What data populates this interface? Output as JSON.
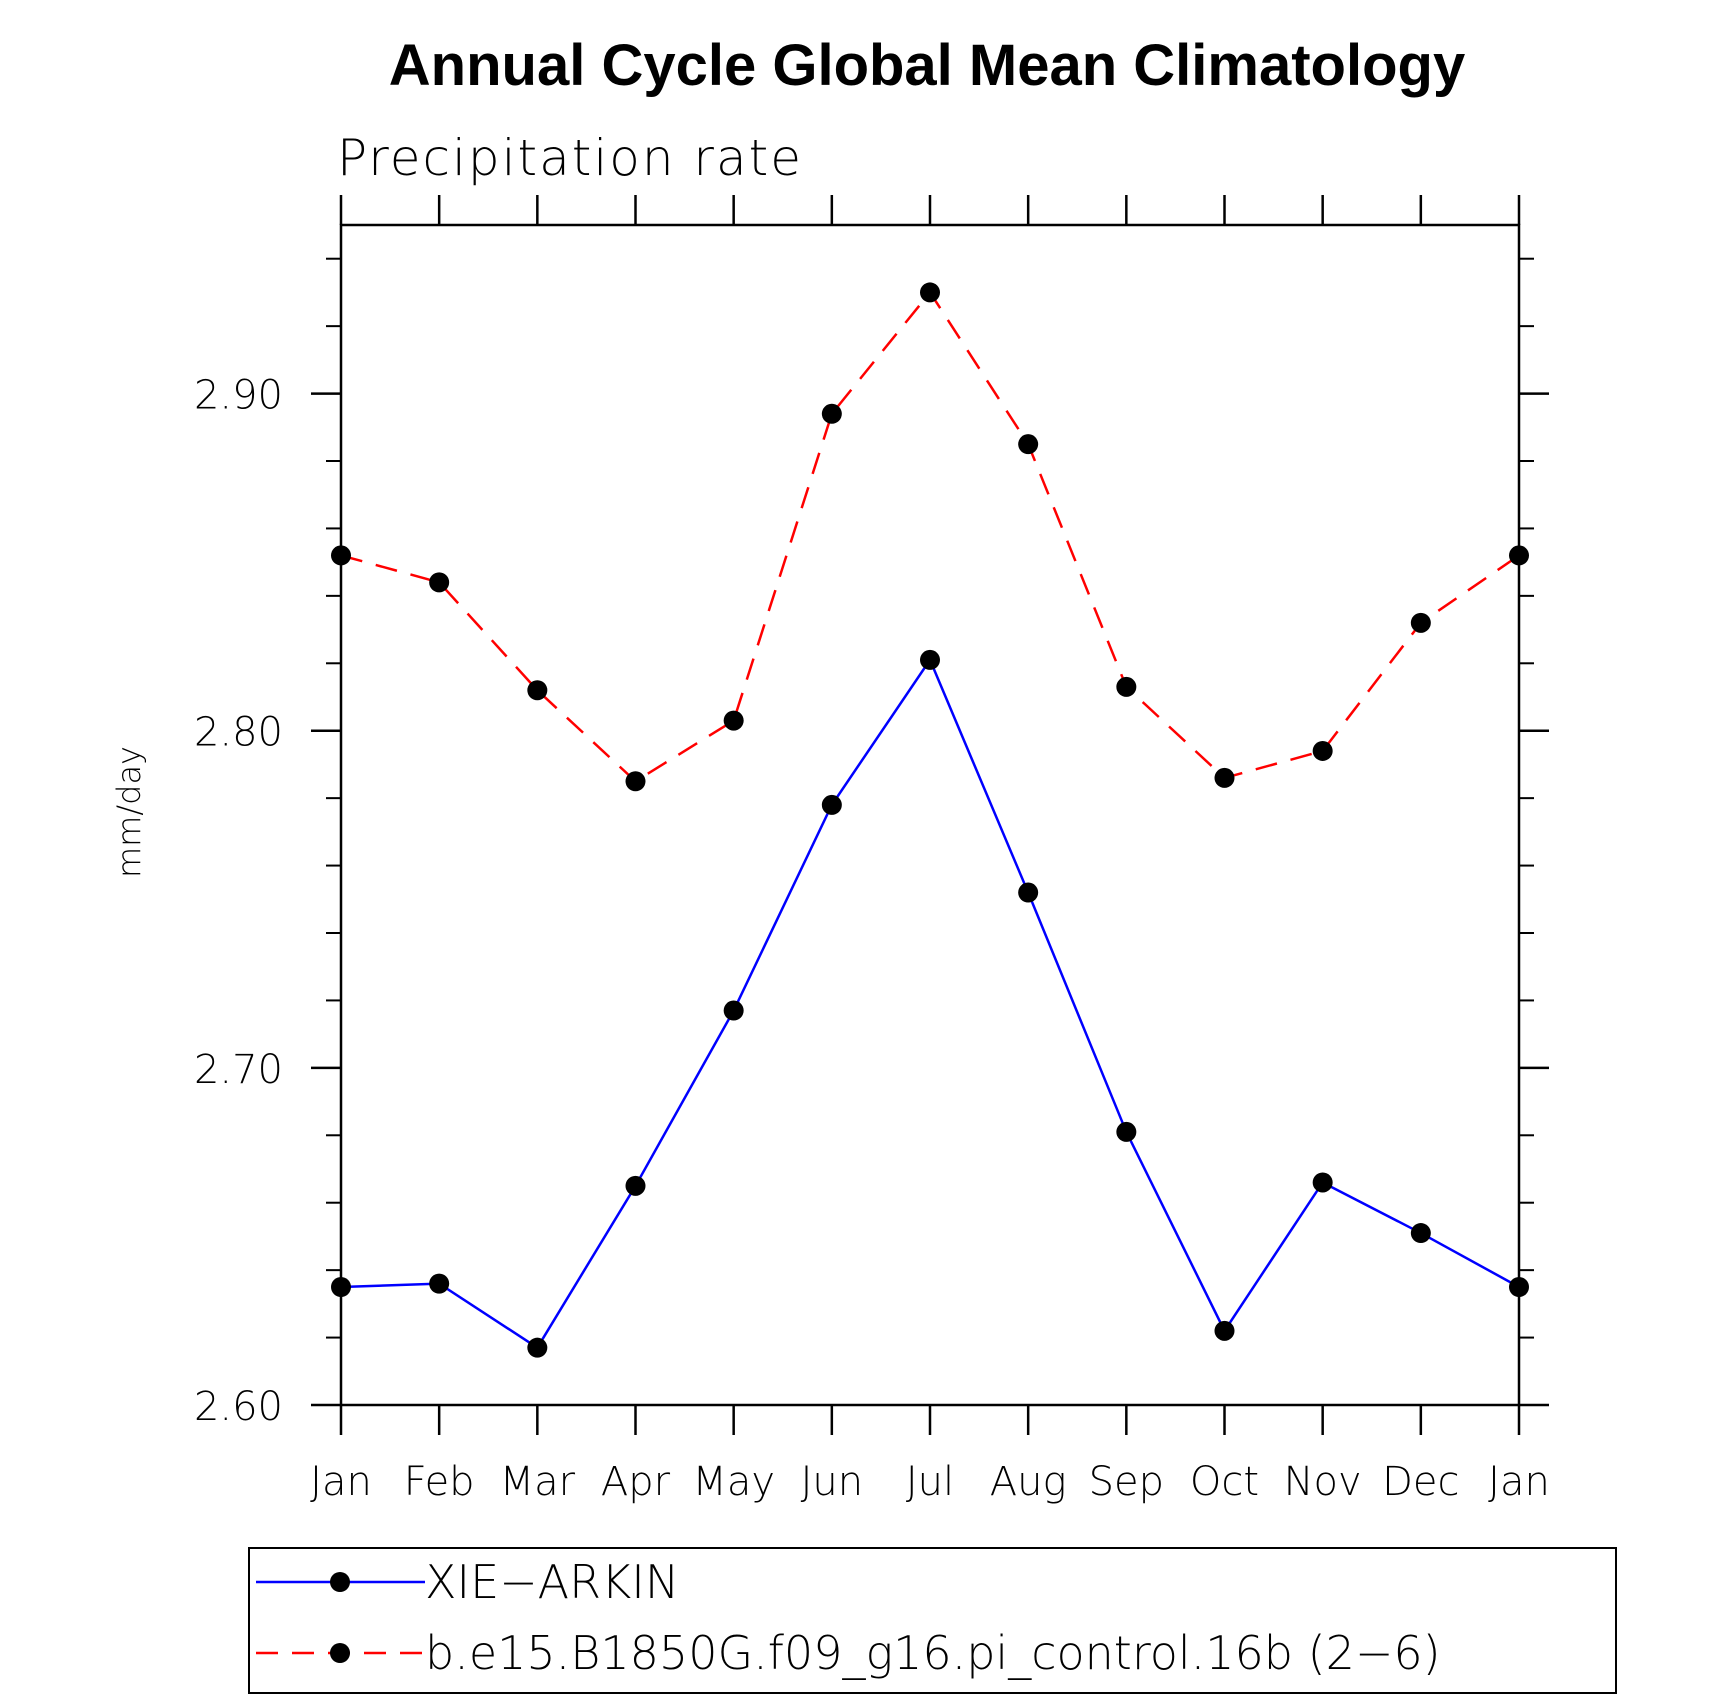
{
  "chart_data": {
    "type": "line",
    "title": "Annual Cycle Global Mean Climatology",
    "subtitle": "Precipitation rate",
    "xlabel": "",
    "ylabel": "mm/day",
    "categories": [
      "Jan",
      "Feb",
      "Mar",
      "Apr",
      "May",
      "Jun",
      "Jul",
      "Aug",
      "Sep",
      "Oct",
      "Nov",
      "Dec",
      "Jan"
    ],
    "ylim": [
      2.6,
      2.95
    ],
    "yticks": [
      2.6,
      2.7,
      2.8,
      2.9
    ],
    "ytick_labels": [
      "2.60",
      "2.70",
      "2.80",
      "2.90"
    ],
    "minor_tick_step": 0.02,
    "grid": false,
    "legend_position": "bottom",
    "series": [
      {
        "name": "XIE−ARKIN",
        "color": "#0000ff",
        "line_style": "solid",
        "marker": "filled-circle",
        "values": [
          2.635,
          2.636,
          2.617,
          2.665,
          2.717,
          2.778,
          2.821,
          2.752,
          2.681,
          2.622,
          2.666,
          2.651,
          2.635
        ]
      },
      {
        "name": "b.e15.B1850G.f09_g16.pi_control.16b (2−6)",
        "color": "#ff0000",
        "line_style": "dashed",
        "marker": "filled-circle",
        "values": [
          2.852,
          2.844,
          2.812,
          2.785,
          2.803,
          2.894,
          2.93,
          2.885,
          2.813,
          2.786,
          2.794,
          2.832,
          2.852
        ]
      }
    ]
  }
}
